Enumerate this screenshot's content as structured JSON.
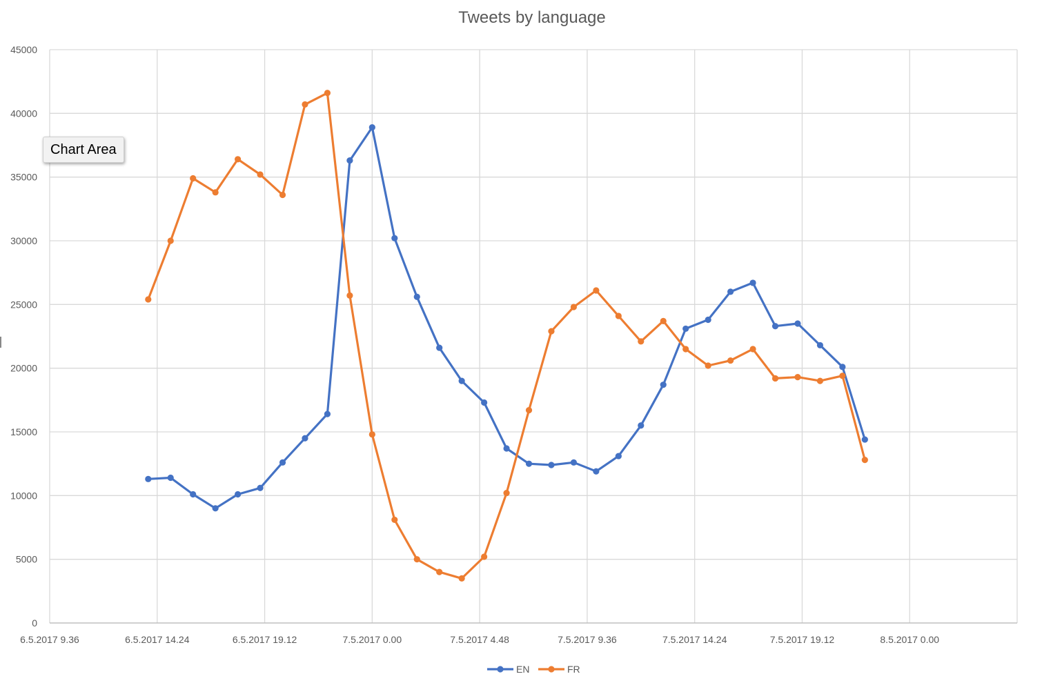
{
  "chart_data": {
    "type": "line",
    "title": "Tweets by language",
    "xlabel": "",
    "ylabel": "",
    "x_tick_labels": [
      "6.5.2017 9.36",
      "6.5.2017 14.24",
      "6.5.2017 19.12",
      "7.5.2017 0.00",
      "7.5.2017 4.48",
      "7.5.2017 9.36",
      "7.5.2017 14.24",
      "7.5.2017 19.12",
      "8.5.2017 0.00"
    ],
    "xlim_hours": [
      0,
      43.2
    ],
    "y_ticks": [
      0,
      5000,
      10000,
      15000,
      20000,
      25000,
      30000,
      35000,
      40000,
      45000
    ],
    "ylim": [
      0,
      45000
    ],
    "grid": true,
    "legend_position": "bottom",
    "x_times": [
      "6.5.2017 14.00",
      "6.5.2017 15.00",
      "6.5.2017 16.00",
      "6.5.2017 17.00",
      "6.5.2017 18.00",
      "6.5.2017 19.00",
      "6.5.2017 20.00",
      "6.5.2017 21.00",
      "6.5.2017 22.00",
      "6.5.2017 23.00",
      "7.5.2017 0.00",
      "7.5.2017 1.00",
      "7.5.2017 2.00",
      "7.5.2017 3.00",
      "7.5.2017 4.00",
      "7.5.2017 5.00",
      "7.5.2017 6.00",
      "7.5.2017 7.00",
      "7.5.2017 8.00",
      "7.5.2017 9.00",
      "7.5.2017 10.00",
      "7.5.2017 11.00",
      "7.5.2017 12.00",
      "7.5.2017 13.00",
      "7.5.2017 14.00",
      "7.5.2017 15.00",
      "7.5.2017 16.00",
      "7.5.2017 17.00",
      "7.5.2017 18.00",
      "7.5.2017 19.00",
      "7.5.2017 20.00",
      "7.5.2017 21.00",
      "7.5.2017 22.00",
      "7.5.2017 23.00"
    ],
    "x_hours": [
      4.4,
      5.4,
      6.4,
      7.4,
      8.4,
      9.4,
      10.4,
      11.4,
      12.4,
      13.4,
      14.4,
      15.4,
      16.4,
      17.4,
      18.4,
      19.4,
      20.4,
      21.4,
      22.4,
      23.4,
      24.4,
      25.4,
      26.4,
      27.4,
      28.4,
      29.4,
      30.4,
      31.4,
      32.4,
      33.4,
      34.4,
      35.4,
      36.4,
      37.4
    ],
    "series": [
      {
        "name": "EN",
        "color": "#4472C4",
        "values": [
          11300,
          11400,
          10100,
          9000,
          10100,
          10600,
          12600,
          14500,
          16400,
          36300,
          38900,
          30200,
          25600,
          21600,
          19000,
          17300,
          13700,
          12500,
          12400,
          12600,
          11900,
          13100,
          15500,
          18700,
          23100,
          23800,
          26000,
          26700,
          23300,
          23500,
          21800,
          20100,
          14400,
          null
        ]
      },
      {
        "name": "FR",
        "color": "#ED7D31",
        "values": [
          25400,
          30000,
          34900,
          33800,
          36400,
          35200,
          33600,
          40700,
          41600,
          25700,
          14800,
          8100,
          5000,
          4000,
          3500,
          5200,
          10200,
          16700,
          22900,
          24800,
          26100,
          24100,
          22100,
          23700,
          21500,
          20200,
          20600,
          21500,
          19200,
          19300,
          19000,
          19400,
          12800,
          null
        ]
      }
    ]
  },
  "tooltip": {
    "text": "Chart Area"
  }
}
